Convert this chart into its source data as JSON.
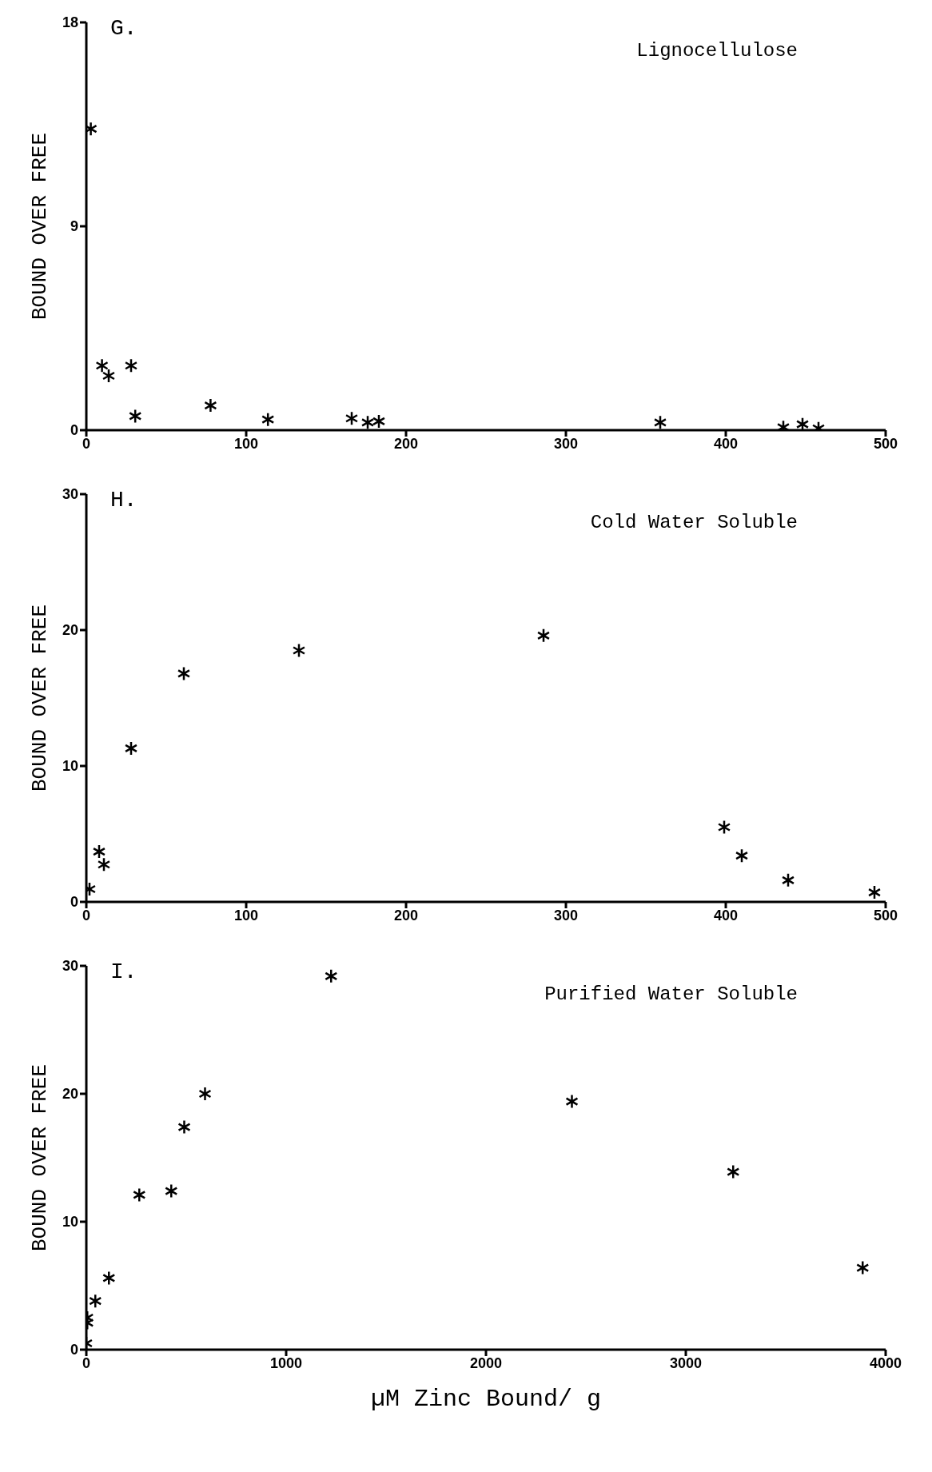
{
  "chart_data": [
    {
      "type": "scatter",
      "title": "Lignocellulose",
      "ylabel": "BOUND OVER FREE",
      "annotations": [
        "G."
      ],
      "marker": "cross",
      "grid": false,
      "xlim": [
        0,
        500
      ],
      "xticks": [
        0,
        100,
        200,
        300,
        400,
        500
      ],
      "ylim": [
        0,
        18
      ],
      "yticks": [
        0,
        9,
        18
      ],
      "series": [
        {
          "color": "#000000",
          "x": [
            2.8,
            9.8,
            14,
            28,
            30.6,
            77.7,
            113.6,
            166,
            176,
            183,
            359,
            436,
            448,
            458
          ],
          "values": [
            13.3,
            2.85,
            2.4,
            2.85,
            0.62,
            1.09,
            0.47,
            0.52,
            0.34,
            0.39,
            0.34,
            0.13,
            0.26,
            0.08
          ]
        }
      ]
    },
    {
      "type": "scatter",
      "title": "Cold Water Soluble",
      "ylabel": "BOUND OVER FREE",
      "annotations": [
        "H."
      ],
      "marker": "cross",
      "grid": false,
      "xlim": [
        0,
        500
      ],
      "xticks": [
        0,
        100,
        200,
        300,
        400,
        500
      ],
      "ylim": [
        0,
        30
      ],
      "yticks": [
        0,
        10,
        20,
        30
      ],
      "series": [
        {
          "color": "#000000",
          "x": [
            2,
            8,
            11,
            28,
            61,
            133,
            286,
            399,
            410,
            439,
            493
          ],
          "values": [
            0.94,
            3.7,
            2.75,
            11.3,
            16.8,
            18.5,
            19.6,
            5.5,
            3.4,
            1.6,
            0.7
          ]
        }
      ]
    },
    {
      "type": "scatter",
      "title": "Purified Water Soluble",
      "xlabel": "µM Zinc Bound/ g",
      "ylabel": "BOUND OVER FREE",
      "annotations": [
        "I."
      ],
      "marker": "cross",
      "grid": false,
      "xlim": [
        0,
        4000
      ],
      "xticks": [
        0,
        1000,
        2000,
        3000,
        4000
      ],
      "ylim": [
        0,
        30
      ],
      "yticks": [
        0,
        10,
        20,
        30
      ],
      "series": [
        {
          "color": "#000000",
          "x": [
            0,
            5,
            5,
            45,
            113,
            265,
            425,
            490,
            594,
            1225,
            2430,
            3237,
            3885
          ],
          "values": [
            0.5,
            2.1,
            2.5,
            3.8,
            5.6,
            12.1,
            12.4,
            17.4,
            20,
            29.2,
            19.4,
            13.9,
            6.4
          ]
        }
      ]
    }
  ]
}
